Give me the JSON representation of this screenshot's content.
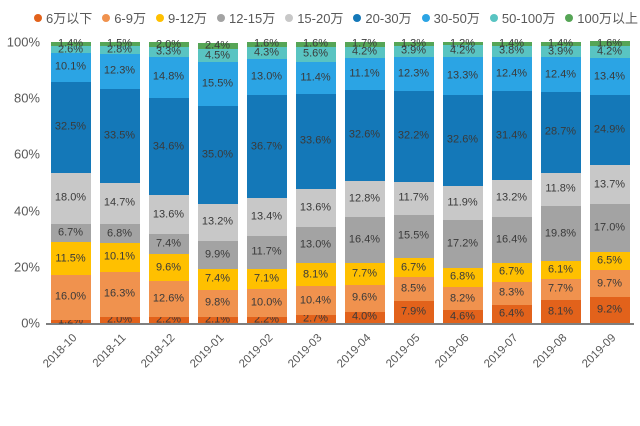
{
  "chart_data": {
    "type": "bar",
    "subtype": "stacked-100-percent",
    "title": "",
    "xlabel": "",
    "ylabel": "",
    "ylim": [
      0,
      100
    ],
    "grid": false,
    "legend_position": "top",
    "yticks": [
      0,
      20,
      40,
      60,
      80,
      100
    ],
    "ytick_suffix": "%",
    "categories": [
      "2018-10",
      "2018-11",
      "2018-12",
      "2019-01",
      "2019-02",
      "2019-03",
      "2019-04",
      "2019-05",
      "2019-06",
      "2019-07",
      "2019-08",
      "2019-09"
    ],
    "series": [
      {
        "name": "6万以下",
        "color": "#e2621b",
        "values": [
          1.2,
          2.0,
          2.2,
          2.1,
          2.2,
          2.7,
          4.0,
          7.9,
          4.6,
          6.4,
          8.1,
          9.2
        ]
      },
      {
        "name": "6-9万",
        "color": "#f0924e",
        "values": [
          16.0,
          16.3,
          12.6,
          9.8,
          10.0,
          10.4,
          9.6,
          8.5,
          8.2,
          8.3,
          7.7,
          9.7
        ]
      },
      {
        "name": "9-12万",
        "color": "#ffc000",
        "values": [
          11.5,
          10.1,
          9.6,
          7.4,
          7.1,
          8.1,
          7.7,
          6.7,
          6.8,
          6.7,
          6.1,
          6.5
        ]
      },
      {
        "name": "12-15万",
        "color": "#a3a3a3",
        "values": [
          6.7,
          6.8,
          7.4,
          9.9,
          11.7,
          13.0,
          16.4,
          15.5,
          17.2,
          16.4,
          19.8,
          17.0
        ]
      },
      {
        "name": "15-20万",
        "color": "#c8c8c8",
        "values": [
          18.0,
          14.7,
          13.6,
          13.2,
          13.4,
          13.6,
          12.8,
          11.7,
          11.9,
          13.2,
          11.8,
          13.7
        ]
      },
      {
        "name": "20-30万",
        "color": "#1478b8",
        "values": [
          32.5,
          33.5,
          34.6,
          35.0,
          36.7,
          33.6,
          32.6,
          32.2,
          32.6,
          31.4,
          28.7,
          24.9
        ]
      },
      {
        "name": "30-50万",
        "color": "#2ba4e4",
        "values": [
          10.1,
          12.3,
          14.8,
          15.5,
          13.0,
          11.4,
          11.1,
          12.3,
          13.3,
          12.4,
          12.4,
          13.4
        ]
      },
      {
        "name": "50-100万",
        "color": "#59c4c2",
        "values": [
          2.6,
          2.8,
          3.3,
          4.5,
          4.3,
          5.6,
          4.2,
          3.9,
          4.2,
          3.8,
          3.9,
          4.2
        ]
      },
      {
        "name": "100万以上",
        "color": "#56a556",
        "values": [
          1.4,
          1.5,
          2.0,
          2.4,
          1.6,
          1.6,
          1.7,
          1.3,
          1.2,
          1.4,
          1.4,
          1.6
        ]
      }
    ],
    "value_label_suffix": "%"
  }
}
